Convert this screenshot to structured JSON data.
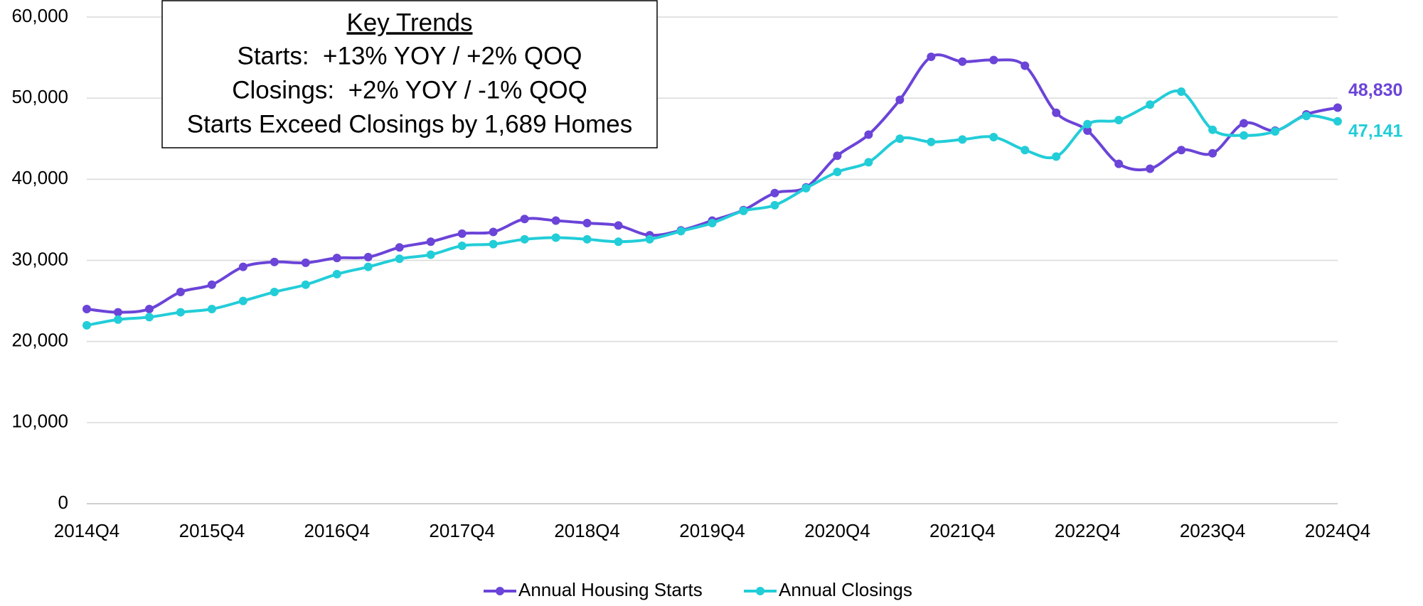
{
  "chart_data": {
    "type": "line",
    "categories": [
      "2014Q4",
      null,
      null,
      null,
      "2015Q4",
      null,
      null,
      null,
      "2016Q4",
      null,
      null,
      null,
      "2017Q4",
      null,
      null,
      null,
      "2018Q4",
      null,
      null,
      null,
      "2019Q4",
      null,
      null,
      null,
      "2020Q4",
      null,
      null,
      null,
      "2021Q4",
      null,
      null,
      null,
      "2022Q4",
      null,
      null,
      null,
      "2023Q4",
      null,
      null,
      null,
      "2024Q4"
    ],
    "series": [
      {
        "name": "Annual Housing Starts",
        "color": "#6b44d8",
        "values": [
          24000,
          23600,
          24000,
          26100,
          27000,
          29200,
          29800,
          29700,
          30300,
          30400,
          31600,
          32300,
          33300,
          33500,
          35100,
          34900,
          34600,
          34300,
          33100,
          33700,
          34900,
          36200,
          38300,
          39000,
          42900,
          45500,
          49800,
          55100,
          54500,
          54700,
          54000,
          48200,
          46000,
          41900,
          41300,
          43600,
          43200,
          46900,
          46000,
          48000,
          48830
        ],
        "value_labels": [
          null,
          null,
          null,
          null,
          null,
          null,
          null,
          null,
          null,
          null,
          null,
          null,
          null,
          null,
          null,
          null,
          null,
          null,
          null,
          null,
          null,
          null,
          null,
          null,
          null,
          null,
          null,
          null,
          null,
          null,
          null,
          null,
          null,
          null,
          null,
          null,
          null,
          null,
          null,
          null,
          "48,830"
        ]
      },
      {
        "name": "Annual Closings",
        "color": "#22cdd8",
        "values": [
          22000,
          22700,
          23000,
          23600,
          24000,
          25000,
          26100,
          27000,
          28300,
          29200,
          30200,
          30700,
          31800,
          32000,
          32600,
          32800,
          32600,
          32300,
          32600,
          33600,
          34600,
          36100,
          36800,
          38900,
          40900,
          42100,
          45000,
          44600,
          44900,
          45200,
          43600,
          42800,
          46800,
          47300,
          49200,
          50800,
          46100,
          45400,
          45900,
          47800,
          47141
        ],
        "value_labels": [
          null,
          null,
          null,
          null,
          null,
          null,
          null,
          null,
          null,
          null,
          null,
          null,
          null,
          null,
          null,
          null,
          null,
          null,
          null,
          null,
          null,
          null,
          null,
          null,
          null,
          null,
          null,
          null,
          null,
          null,
          null,
          null,
          null,
          null,
          null,
          null,
          null,
          null,
          null,
          null,
          "47,141"
        ]
      }
    ],
    "ylim": [
      0,
      60000
    ],
    "yticks": [
      0,
      {
        "value": 10000,
        "label": "10,000"
      },
      {
        "value": 20000,
        "label": "20,000"
      },
      {
        "value": 30000,
        "label": "30,000"
      },
      {
        "value": 40000,
        "label": "40,000"
      },
      {
        "value": 50000,
        "label": "50,000"
      },
      {
        "value": 60000,
        "label": "60,000"
      }
    ],
    "grid": true,
    "legend": "bottom",
    "annotation": {
      "title": "Key Trends",
      "lines": [
        "Starts:  +13% YOY / +2% QOQ",
        "Closings:  +2% YOY / -1% QOQ",
        "Starts Exceed Closings by 1,689 Homes"
      ]
    }
  }
}
